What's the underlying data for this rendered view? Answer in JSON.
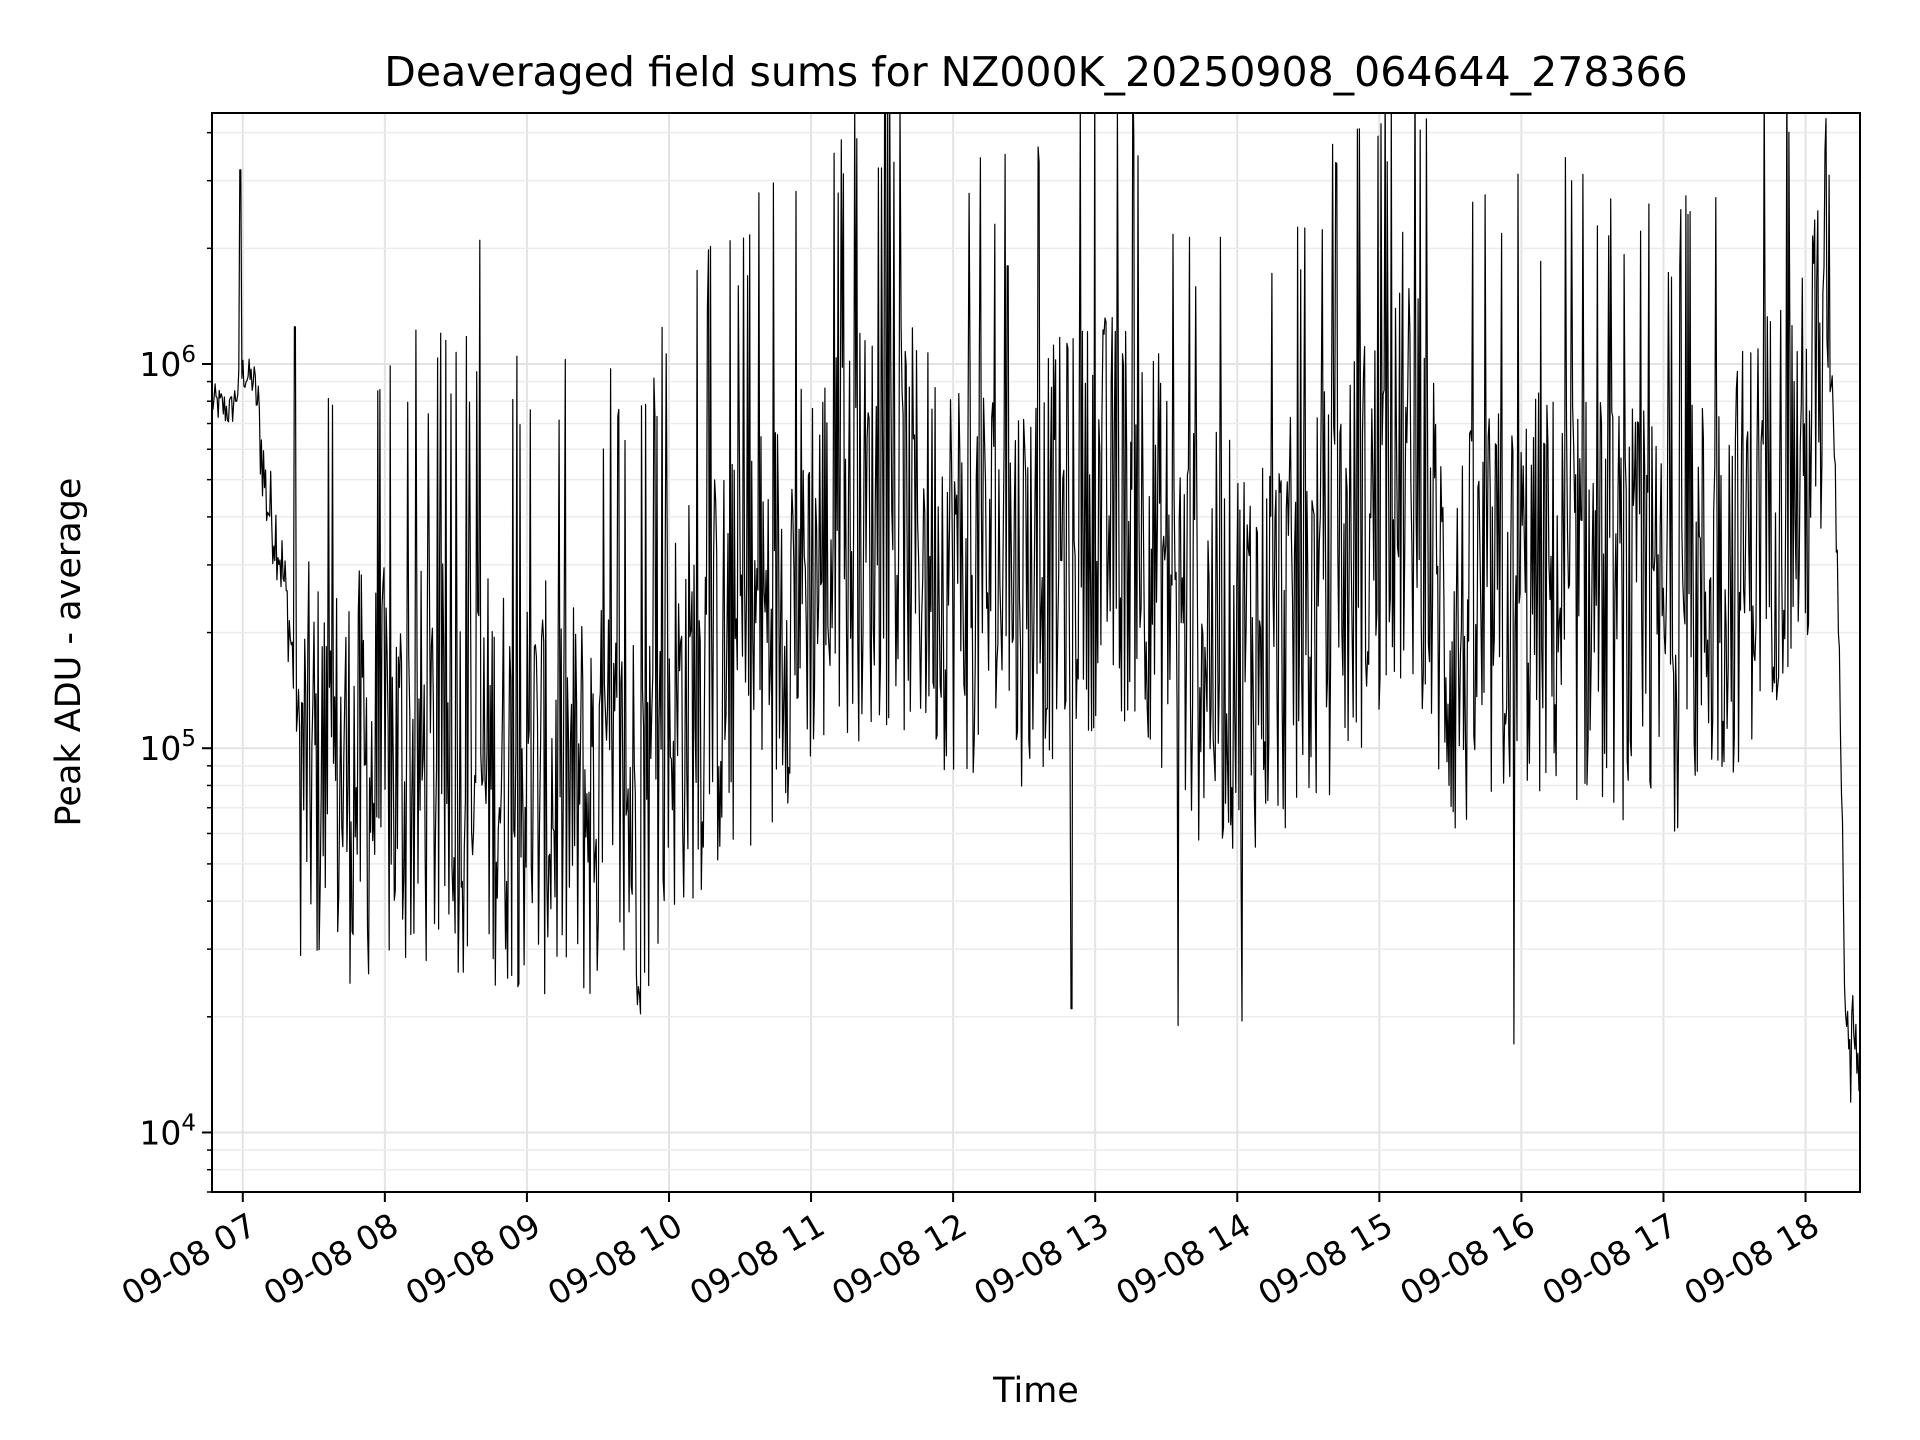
{
  "chart_data": {
    "type": "line",
    "title": "Deaveraged field sums for NZ000K_20250908_064644_278366",
    "xlabel": "Time",
    "ylabel": "Peak ADU - average",
    "y_scale": "log",
    "ylim": [
      7000,
      4500000
    ],
    "xlim": [
      "2025-09-08 06:47",
      "2025-09-08 18:23"
    ],
    "grid": true,
    "line_color": "#000000",
    "x_ticks": [
      "09-08 07",
      "09-08 08",
      "09-08 09",
      "09-08 10",
      "09-08 11",
      "09-08 12",
      "09-08 13",
      "09-08 14",
      "09-08 15",
      "09-08 16",
      "09-08 17",
      "09-08 18"
    ],
    "y_ticks": [
      {
        "value": 10000,
        "base": "10",
        "exponent": "4"
      },
      {
        "value": 100000,
        "base": "10",
        "exponent": "5"
      },
      {
        "value": 1000000,
        "base": "10",
        "exponent": "6"
      }
    ],
    "series": [
      {
        "x": [
          "2025-09-08 06:47",
          "2025-09-08 06:55",
          "2025-09-08 07:00",
          "2025-09-08 07:05",
          "2025-09-08 07:10",
          "2025-09-08 07:15",
          "2025-09-08 07:20",
          "2025-09-08 07:25",
          "2025-09-08 07:30",
          "2025-09-08 07:45",
          "2025-09-08 08:00",
          "2025-09-08 08:30",
          "2025-09-08 09:00",
          "2025-09-08 09:30",
          "2025-09-08 09:50",
          "2025-09-08 10:00",
          "2025-09-08 10:30",
          "2025-09-08 11:00",
          "2025-09-08 11:30",
          "2025-09-08 12:00",
          "2025-09-08 12:30",
          "2025-09-08 13:00",
          "2025-09-08 13:20",
          "2025-09-08 13:40",
          "2025-09-08 14:00",
          "2025-09-08 14:30",
          "2025-09-08 15:00",
          "2025-09-08 15:15",
          "2025-09-08 15:30",
          "2025-09-08 16:00",
          "2025-09-08 16:30",
          "2025-09-08 17:00",
          "2025-09-08 17:30",
          "2025-09-08 17:50",
          "2025-09-08 18:00",
          "2025-09-08 18:08",
          "2025-09-08 18:12",
          "2025-09-08 18:15",
          "2025-09-08 18:17",
          "2025-09-08 18:20",
          "2025-09-08 18:23"
        ],
        "y": [
          800000,
          750000,
          950000,
          900000,
          450000,
          350000,
          200000,
          90000,
          85000,
          85000,
          85000,
          90000,
          80000,
          70000,
          70000,
          120000,
          180000,
          300000,
          400000,
          300000,
          280000,
          400000,
          400000,
          200000,
          180000,
          220000,
          400000,
          500000,
          180000,
          250000,
          250000,
          200000,
          300000,
          500000,
          500000,
          1500000,
          700000,
          100000,
          18000,
          20000,
          14000
        ],
        "spikes": [
          {
            "x": "2025-09-08 06:59",
            "y": 3200000
          },
          {
            "x": "2025-09-08 07:22",
            "y": 1250000
          },
          {
            "x": "2025-09-08 08:40",
            "y": 2100000
          },
          {
            "x": "2025-09-08 12:23",
            "y": 1800000
          },
          {
            "x": "2025-09-08 12:50",
            "y": 21000
          },
          {
            "x": "2025-09-08 13:35",
            "y": 19000
          },
          {
            "x": "2025-09-08 14:02",
            "y": 19500
          },
          {
            "x": "2025-09-08 15:10",
            "y": 2200000
          },
          {
            "x": "2025-09-08 15:57",
            "y": 17000
          },
          {
            "x": "2025-09-08 16:08",
            "y": 1850000
          },
          {
            "x": "2025-09-08 18:10",
            "y": 3100000
          },
          {
            "x": "2025-09-08 18:19",
            "y": 12000
          }
        ]
      }
    ]
  }
}
